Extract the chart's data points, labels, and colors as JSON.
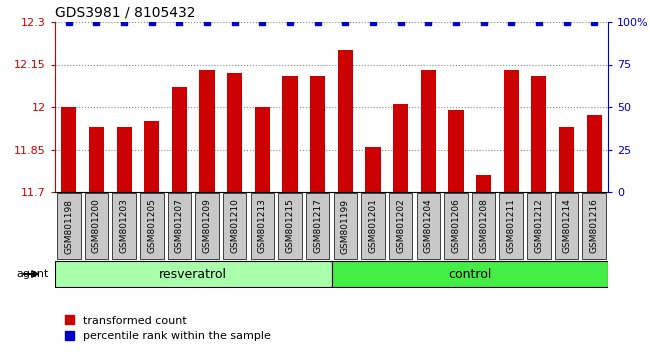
{
  "title": "GDS3981 / 8105432",
  "samples": [
    "GSM801198",
    "GSM801200",
    "GSM801203",
    "GSM801205",
    "GSM801207",
    "GSM801209",
    "GSM801210",
    "GSM801213",
    "GSM801215",
    "GSM801217",
    "GSM801199",
    "GSM801201",
    "GSM801202",
    "GSM801204",
    "GSM801206",
    "GSM801208",
    "GSM801211",
    "GSM801212",
    "GSM801214",
    "GSM801216"
  ],
  "red_values": [
    12.0,
    11.93,
    11.93,
    11.95,
    12.07,
    12.13,
    12.12,
    12.0,
    12.11,
    12.11,
    12.2,
    11.86,
    12.01,
    12.13,
    11.99,
    11.76,
    12.13,
    12.11,
    11.93,
    11.97
  ],
  "blue_values": [
    100,
    100,
    100,
    100,
    100,
    100,
    100,
    100,
    100,
    100,
    100,
    100,
    100,
    100,
    100,
    100,
    100,
    100,
    100,
    100
  ],
  "ylim_left": [
    11.7,
    12.3
  ],
  "ylim_right": [
    0,
    100
  ],
  "yticks_left": [
    11.7,
    11.85,
    12.0,
    12.15,
    12.3
  ],
  "yticks_right": [
    0,
    25,
    50,
    75,
    100
  ],
  "ytick_labels_left": [
    "11.7",
    "11.85",
    "12",
    "12.15",
    "12.3"
  ],
  "ytick_labels_right": [
    "0",
    "25",
    "50",
    "75",
    "100%"
  ],
  "resveratrol_count": 10,
  "control_count": 10,
  "bar_color": "#cc0000",
  "dot_color": "#0000cc",
  "grid_color": "#888888",
  "tick_bg_color": "#c8c8c8",
  "plot_bg": "#ffffff",
  "resveratrol_color": "#aaffaa",
  "control_color": "#44ee44",
  "agent_label": "agent",
  "resveratrol_label": "resveratrol",
  "control_label": "control",
  "legend_red": "transformed count",
  "legend_blue": "percentile rank within the sample"
}
